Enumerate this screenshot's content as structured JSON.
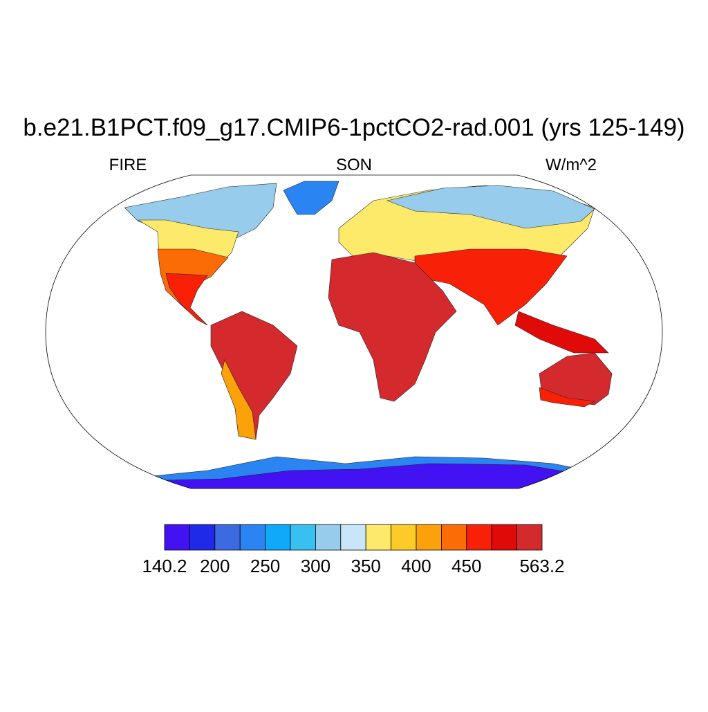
{
  "title": "b.e21.B1PCT.f09_g17.CMIP6-1pctCO2-rad.001 (yrs 125-149)",
  "left_label": "FIRE",
  "center_label": "SON",
  "right_label": "W/m^2",
  "colorbar": {
    "colors": [
      "#4212f2",
      "#1e2ae8",
      "#3d6ae0",
      "#2a84f2",
      "#10a8f8",
      "#38c0f2",
      "#98ccec",
      "#c8e6f8",
      "#fde96a",
      "#fccb28",
      "#fba10a",
      "#fb6c06",
      "#f92008",
      "#e00a08",
      "#d42a2e"
    ],
    "ticks": [
      140.2,
      200,
      250,
      300,
      350,
      400,
      450,
      563.2
    ]
  }
}
